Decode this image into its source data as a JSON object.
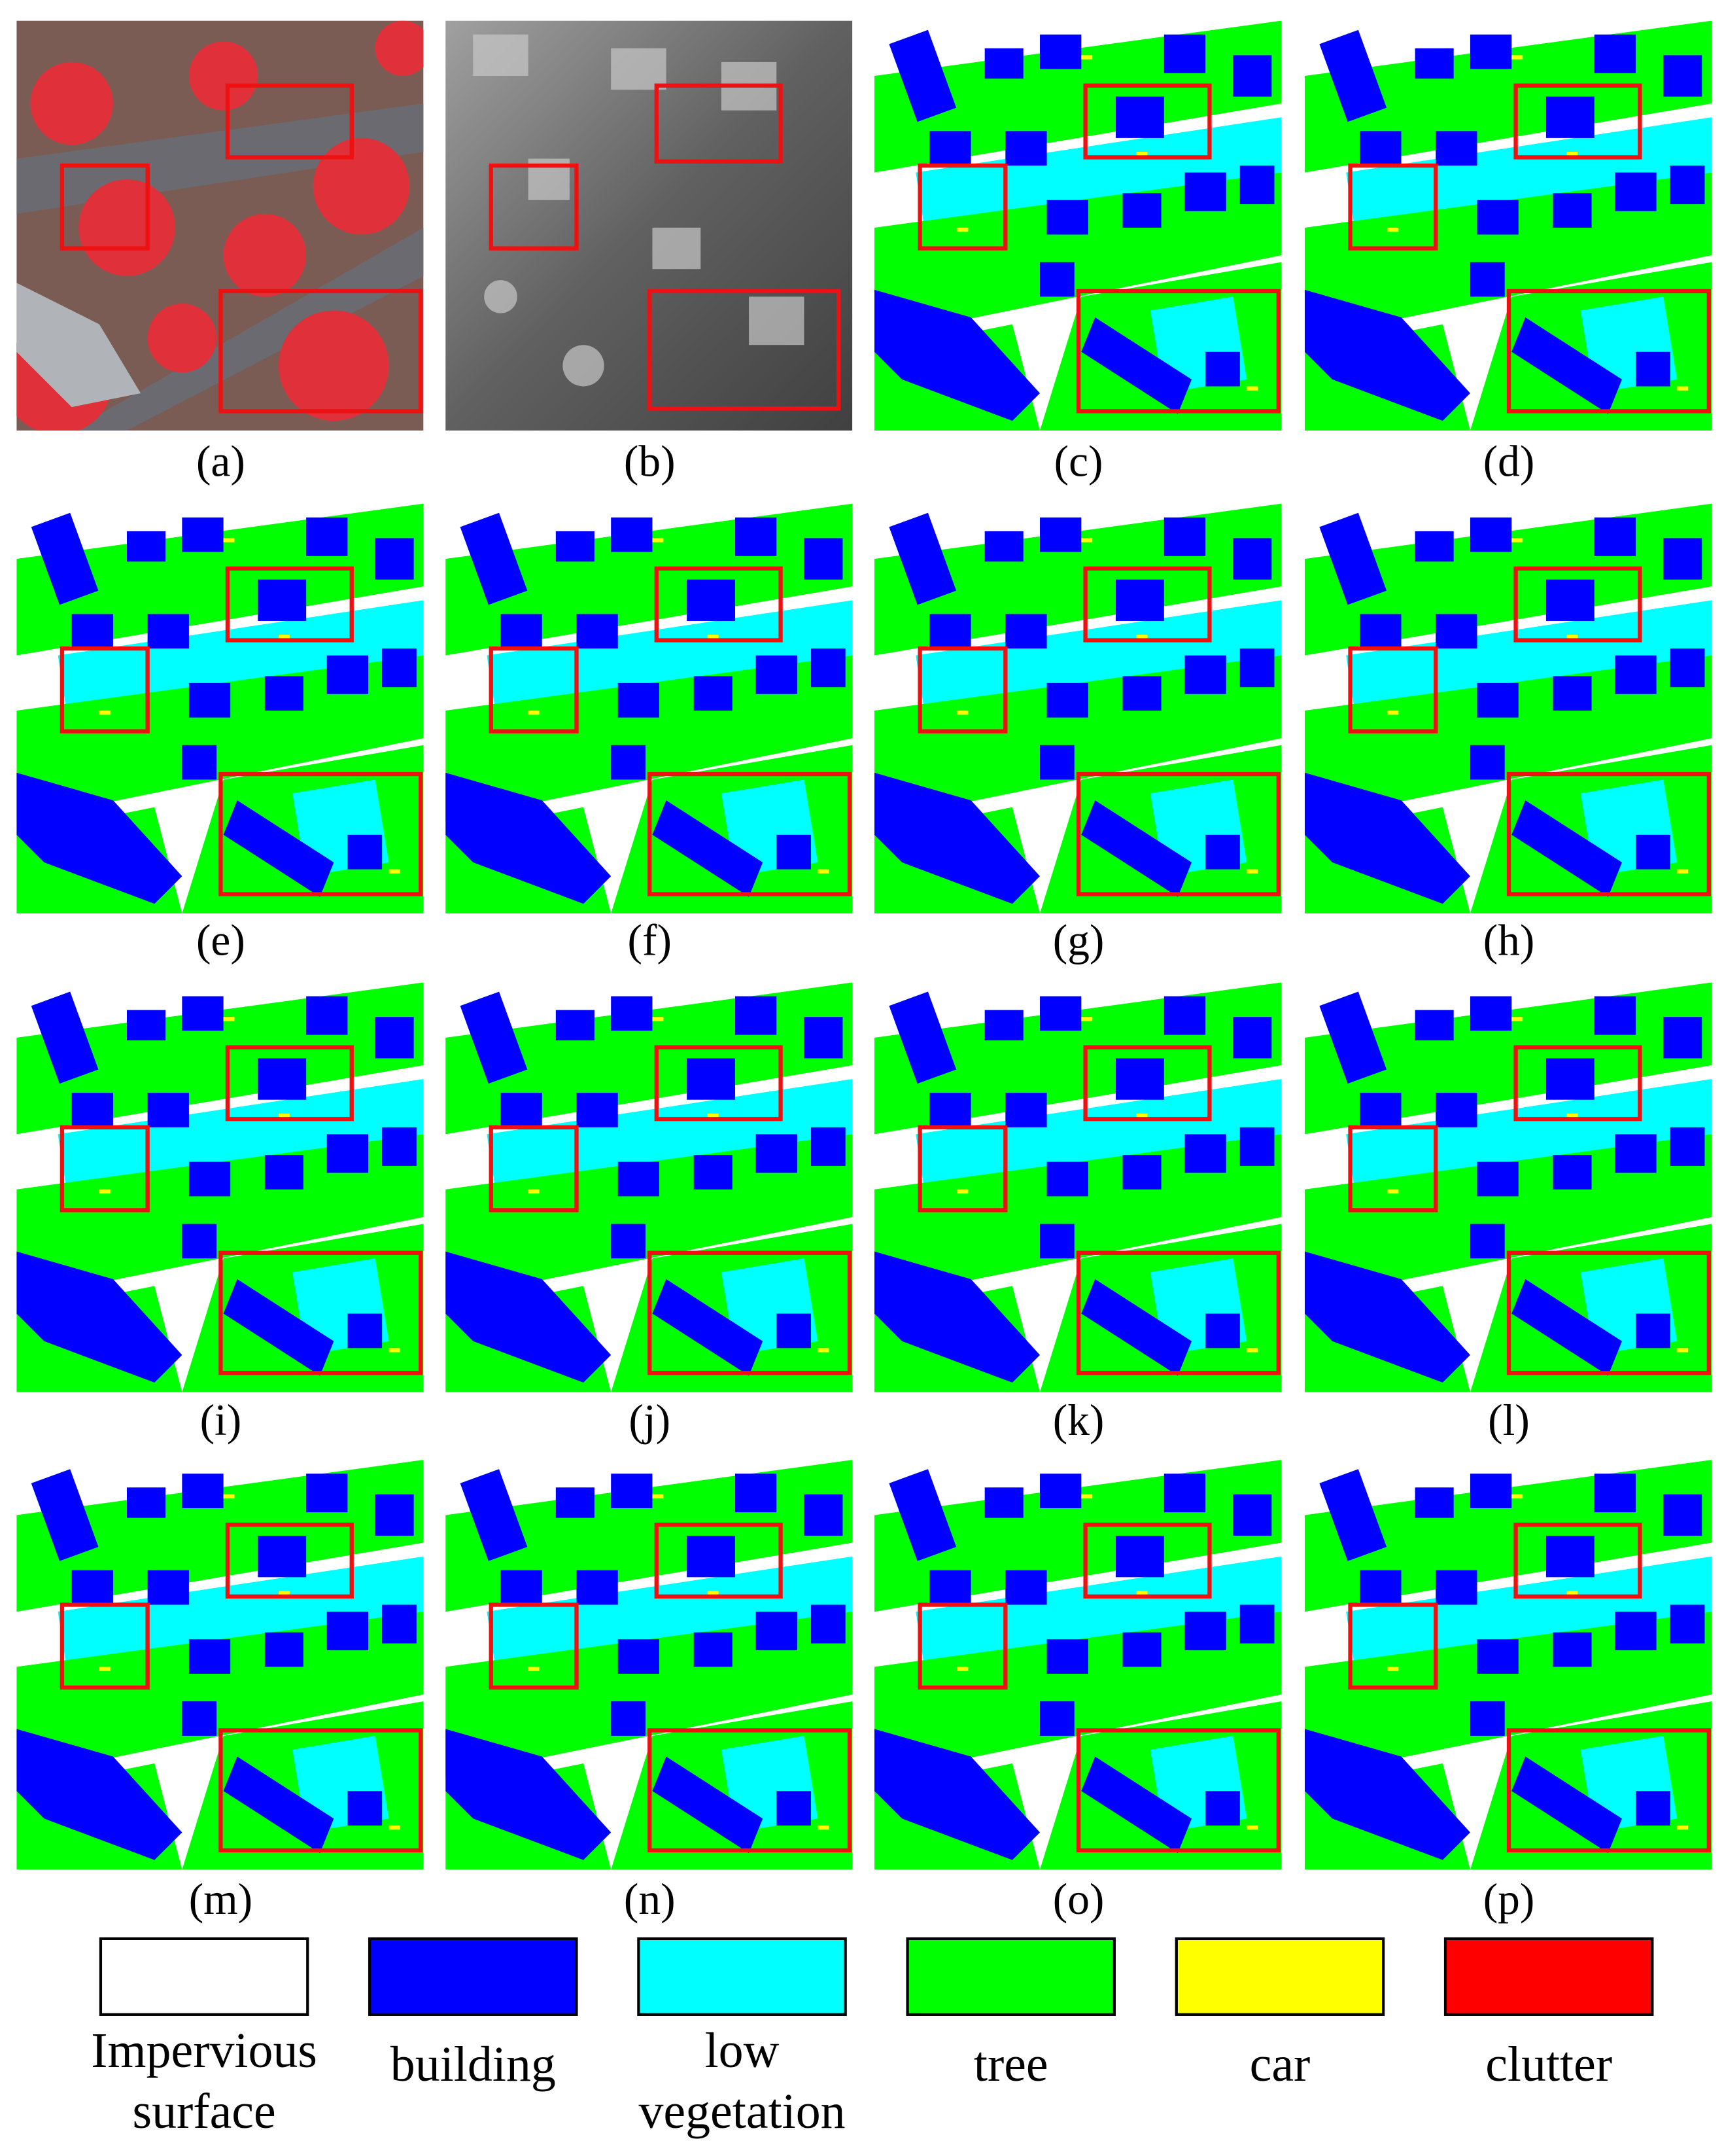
{
  "panels": [
    {
      "label": "(a)"
    },
    {
      "label": "(b)"
    },
    {
      "label": "(c)"
    },
    {
      "label": "(d)"
    },
    {
      "label": "(e)"
    },
    {
      "label": "(f)"
    },
    {
      "label": "(g)"
    },
    {
      "label": "(h)"
    },
    {
      "label": "(i)"
    },
    {
      "label": "(j)"
    },
    {
      "label": "(k)"
    },
    {
      "label": "(l)"
    },
    {
      "label": "(m)"
    },
    {
      "label": "(n)"
    },
    {
      "label": "(o)"
    },
    {
      "label": "(p)"
    }
  ],
  "legend": [
    {
      "lines": [
        "Impervious",
        "surface"
      ],
      "color": "#ffffff"
    },
    {
      "lines": [
        "building"
      ],
      "color": "#0000ff"
    },
    {
      "lines": [
        "low",
        "vegetation"
      ],
      "color": "#00ffff"
    },
    {
      "lines": [
        "tree"
      ],
      "color": "#00ff00"
    },
    {
      "lines": [
        "car"
      ],
      "color": "#ffff00"
    },
    {
      "lines": [
        "clutter"
      ],
      "color": "#ff0000"
    }
  ]
}
